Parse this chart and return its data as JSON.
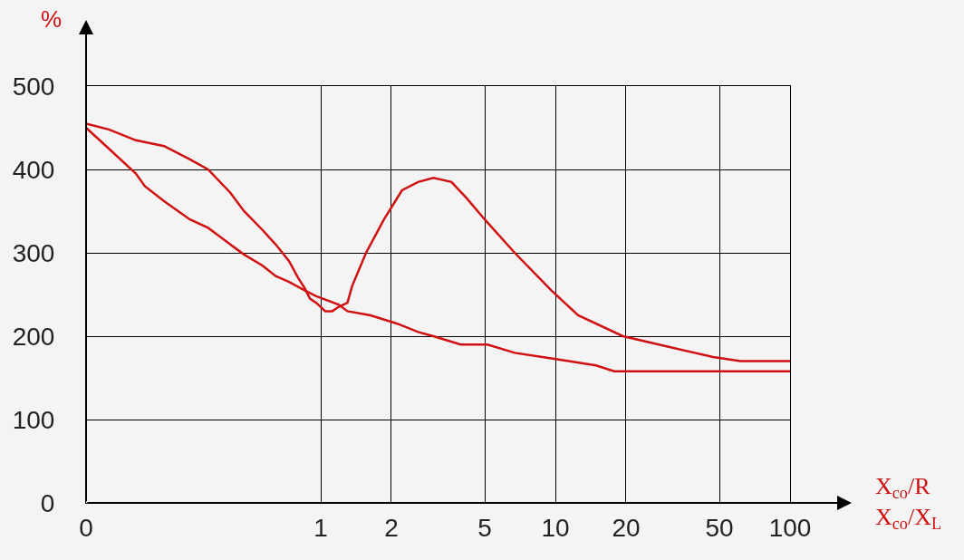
{
  "chart_data": {
    "type": "line",
    "ylabel": "%",
    "xlabel": "X$_{co}$/R\nX$_{co}$/X$_{L}$",
    "log": "x",
    "xlim": [
      0.1,
      100
    ],
    "xticks": [
      {
        "value": 0.1,
        "label": "0"
      },
      1,
      2,
      5,
      10,
      20,
      50,
      100
    ],
    "ylim": [
      0,
      500
    ],
    "yticks": [
      0,
      100,
      200,
      300,
      400,
      500
    ],
    "grid": true,
    "marker": "none",
    "line_style": "solid",
    "series": [
      {
        "color": "#d01010",
        "x": [
          0.1,
          0.125,
          0.163,
          0.215,
          0.277,
          0.331,
          0.412,
          0.471,
          0.562,
          0.643,
          0.733,
          0.801,
          0.853,
          0.9,
          0.957,
          1.045,
          1.12,
          1.19,
          1.3,
          1.36,
          1.56,
          1.86,
          2.22,
          2.6,
          3.02,
          3.61,
          4.2,
          5.0,
          6.71,
          9.6,
          12.5,
          19.4,
          27.6,
          47,
          61.5,
          100
        ],
        "values": [
          455,
          448,
          435,
          428,
          412,
          400,
          372,
          350,
          328,
          310,
          290,
          270,
          258,
          245,
          240,
          230,
          230,
          235,
          240,
          260,
          300,
          340,
          375,
          385,
          390,
          385,
          365,
          340,
          300,
          255,
          225,
          200,
          190,
          175,
          170,
          170
        ]
      },
      {
        "color": "#d01010",
        "x": [
          0.1,
          0.125,
          0.163,
          0.178,
          0.215,
          0.277,
          0.331,
          0.412,
          0.471,
          0.562,
          0.643,
          0.733,
          0.853,
          0.957,
          1.19,
          1.3,
          1.63,
          2.12,
          2.6,
          3.02,
          3.95,
          5.14,
          6.71,
          8.8,
          11.4,
          14.9,
          17.8,
          30,
          60,
          100
        ],
        "values": [
          450,
          425,
          395,
          380,
          362,
          340,
          330,
          310,
          298,
          285,
          272,
          265,
          255,
          248,
          238,
          230,
          225,
          215,
          205,
          200,
          190,
          190,
          180,
          175,
          170,
          165,
          158,
          158,
          158,
          158
        ]
      }
    ]
  }
}
